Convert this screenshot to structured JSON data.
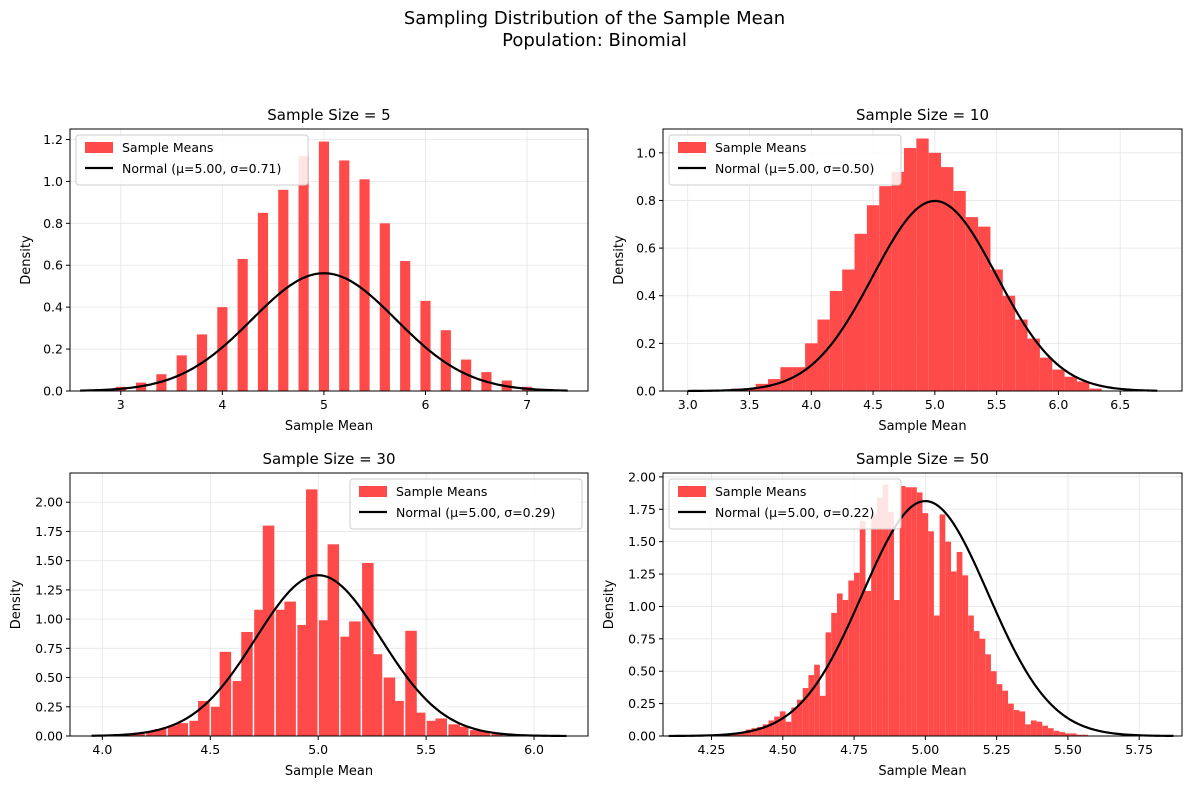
{
  "figure": {
    "suptitle_line1": "Sampling Distribution of the Sample Mean",
    "suptitle_line2": "Population: Binomial"
  },
  "colors": {
    "bars": "#ff4a4a",
    "curve": "#000000",
    "grid": "#e6e6e6"
  },
  "chart_data": [
    {
      "type": "bar",
      "title": "Sample Size = 5",
      "xlabel": "Sample Mean",
      "ylabel": "Density",
      "xlim": [
        2.5,
        7.6
      ],
      "ylim": [
        0,
        1.25
      ],
      "xticks": [
        3,
        4,
        5,
        6,
        7
      ],
      "yticks": [
        0.0,
        0.2,
        0.4,
        0.6,
        0.8,
        1.0,
        1.2
      ],
      "ytick_decimals": 1,
      "bar_width": 0.1,
      "series": [
        {
          "name": "Sample Means",
          "type": "histogram",
          "x": [
            3.0,
            3.2,
            3.4,
            3.6,
            3.8,
            4.0,
            4.2,
            4.4,
            4.6,
            4.8,
            5.0,
            5.2,
            5.4,
            5.6,
            5.8,
            6.0,
            6.2,
            6.4,
            6.6,
            6.8,
            7.0,
            7.2
          ],
          "values": [
            0.02,
            0.04,
            0.08,
            0.17,
            0.27,
            0.4,
            0.63,
            0.85,
            0.96,
            1.12,
            1.19,
            1.1,
            1.01,
            0.8,
            0.62,
            0.43,
            0.29,
            0.15,
            0.09,
            0.05,
            0.02,
            0.01
          ]
        },
        {
          "name": "Normal (μ=5.00, σ=0.71)",
          "type": "normal",
          "mu": 5.0,
          "sigma": 0.71,
          "range": [
            2.6,
            7.4
          ]
        }
      ],
      "legend": "upper left"
    },
    {
      "type": "bar",
      "title": "Sample Size = 10",
      "xlabel": "Sample Mean",
      "ylabel": "Density",
      "xlim": [
        2.8,
        7.0
      ],
      "ylim": [
        0,
        1.1
      ],
      "xticks": [
        3.0,
        3.5,
        4.0,
        4.5,
        5.0,
        5.5,
        6.0,
        6.5
      ],
      "yticks": [
        0.0,
        0.2,
        0.4,
        0.6,
        0.8,
        1.0
      ],
      "ytick_decimals": 1,
      "bar_width": 0.1,
      "series": [
        {
          "name": "Sample Means",
          "type": "histogram",
          "x": [
            3.4,
            3.5,
            3.6,
            3.7,
            3.8,
            3.9,
            4.0,
            4.1,
            4.2,
            4.3,
            4.4,
            4.5,
            4.6,
            4.7,
            4.8,
            4.9,
            5.0,
            5.1,
            5.2,
            5.3,
            5.4,
            5.5,
            5.6,
            5.7,
            5.8,
            5.9,
            6.0,
            6.1,
            6.2,
            6.3
          ],
          "values": [
            0.01,
            0.01,
            0.03,
            0.05,
            0.1,
            0.1,
            0.2,
            0.3,
            0.42,
            0.51,
            0.66,
            0.78,
            0.86,
            0.92,
            1.02,
            1.06,
            1.0,
            0.94,
            0.84,
            0.73,
            0.69,
            0.51,
            0.4,
            0.3,
            0.22,
            0.14,
            0.09,
            0.06,
            0.04,
            0.01
          ],
          "x_exact": [
            3.4,
            3.5,
            3.6,
            3.7,
            3.8,
            3.9,
            4.0,
            4.1,
            4.2,
            4.3,
            4.4,
            4.5,
            4.6,
            4.7,
            4.8,
            4.9,
            5.0,
            5.1,
            5.2,
            5.3,
            5.4,
            5.5,
            5.6,
            5.7,
            5.8,
            5.9,
            6.0,
            6.1,
            6.2,
            6.3
          ]
        },
        {
          "name": "Normal (μ=5.00, σ=0.50)",
          "type": "normal",
          "mu": 5.0,
          "sigma": 0.5,
          "range": [
            3.0,
            6.8
          ]
        }
      ],
      "legend": "upper left"
    },
    {
      "type": "bar",
      "title": "Sample Size = 30",
      "xlabel": "Sample Mean",
      "ylabel": "Density",
      "xlim": [
        3.85,
        6.25
      ],
      "ylim": [
        0,
        2.25
      ],
      "xticks": [
        4.0,
        4.5,
        5.0,
        5.5,
        6.0
      ],
      "yticks": [
        0.0,
        0.25,
        0.5,
        0.75,
        1.0,
        1.25,
        1.5,
        1.75,
        2.0
      ],
      "ytick_decimals": 2,
      "bar_width": 0.0533,
      "series": [
        {
          "name": "Sample Means",
          "type": "histogram",
          "x": [
            4.13,
            4.17,
            4.23,
            4.27,
            4.33,
            4.37,
            4.43,
            4.47,
            4.53,
            4.57,
            4.63,
            4.67,
            4.73,
            4.77,
            4.83,
            4.87,
            4.93,
            4.97,
            5.03,
            5.07,
            5.13,
            5.17,
            5.23,
            5.27,
            5.33,
            5.37,
            5.43,
            5.47,
            5.53,
            5.57,
            5.63,
            5.67,
            5.73,
            5.77,
            5.83
          ],
          "values": [
            0.01,
            0.02,
            0.04,
            0.06,
            0.09,
            0.11,
            0.13,
            0.3,
            0.25,
            0.72,
            0.47,
            0.89,
            1.08,
            1.8,
            1.08,
            1.15,
            0.95,
            2.11,
            0.99,
            1.64,
            0.85,
            0.98,
            1.48,
            0.7,
            0.5,
            0.3,
            0.9,
            0.2,
            0.13,
            0.15,
            0.1,
            0.08,
            0.05,
            0.04,
            0.02
          ]
        },
        {
          "name": "Normal (μ=5.00, σ=0.29)",
          "type": "normal",
          "mu": 5.0,
          "sigma": 0.29,
          "range": [
            3.95,
            6.15
          ]
        }
      ],
      "legend": "upper right"
    },
    {
      "type": "bar",
      "title": "Sample Size = 50",
      "xlabel": "Sample Mean",
      "ylabel": "Density",
      "xlim": [
        4.08,
        5.9
      ],
      "ylim": [
        0,
        2.03
      ],
      "xticks": [
        4.25,
        4.5,
        4.75,
        5.0,
        5.25,
        5.5,
        5.75
      ],
      "yticks": [
        0.0,
        0.25,
        0.5,
        0.75,
        1.0,
        1.25,
        1.5,
        1.75,
        2.0
      ],
      "ytick_decimals": 2,
      "bar_width": 0.02,
      "series": [
        {
          "name": "Sample Means",
          "type": "histogram",
          "x": [
            4.28,
            4.3,
            4.32,
            4.34,
            4.36,
            4.38,
            4.4,
            4.42,
            4.44,
            4.46,
            4.48,
            4.5,
            4.52,
            4.54,
            4.56,
            4.58,
            4.6,
            4.62,
            4.64,
            4.66,
            4.68,
            4.7,
            4.72,
            4.74,
            4.76,
            4.78,
            4.8,
            4.82,
            4.84,
            4.86,
            4.88,
            4.9,
            4.92,
            4.94,
            4.96,
            4.98,
            5.0,
            5.02,
            5.04,
            5.06,
            5.08,
            5.1,
            5.12,
            5.14,
            5.16,
            5.18,
            5.2,
            5.22,
            5.24,
            5.26,
            5.28,
            5.3,
            5.32,
            5.34,
            5.36,
            5.38,
            5.4,
            5.42,
            5.44,
            5.46,
            5.48,
            5.5,
            5.52,
            5.54,
            5.56,
            5.58,
            5.6,
            5.62
          ],
          "values": [
            0.0,
            0.01,
            0.02,
            0.02,
            0.03,
            0.05,
            0.06,
            0.07,
            0.09,
            0.12,
            0.15,
            0.19,
            0.11,
            0.22,
            0.28,
            0.37,
            0.47,
            0.55,
            0.31,
            0.8,
            0.95,
            1.1,
            1.05,
            1.2,
            1.26,
            1.66,
            1.12,
            1.71,
            1.84,
            1.94,
            1.73,
            1.05,
            1.93,
            1.92,
            1.92,
            1.88,
            1.72,
            1.58,
            0.93,
            1.71,
            1.5,
            1.27,
            1.42,
            1.24,
            0.93,
            0.81,
            0.75,
            0.63,
            0.5,
            0.4,
            0.35,
            0.25,
            0.2,
            0.19,
            0.09,
            0.12,
            0.11,
            0.08,
            0.06,
            0.04,
            0.03,
            0.02,
            0.02,
            0.01,
            0.01,
            0.0,
            0.0,
            0.0
          ]
        },
        {
          "name": "Normal (μ=5.00, σ=0.22)",
          "type": "normal",
          "mu": 5.0,
          "sigma": 0.22,
          "range": [
            4.1,
            5.87
          ]
        }
      ],
      "legend": "upper left"
    }
  ]
}
